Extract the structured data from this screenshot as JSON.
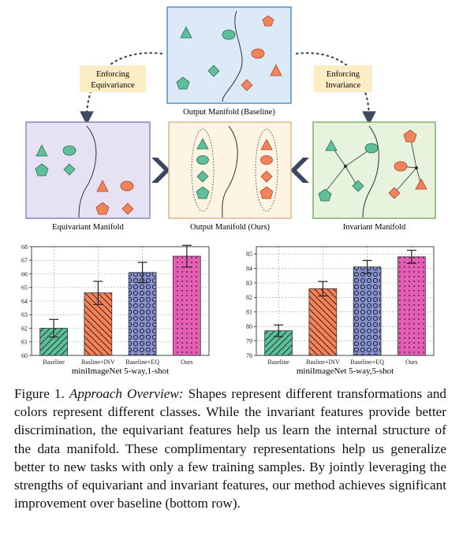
{
  "diagram": {
    "top_panel_label": "Output Manifold (Baseline)",
    "left_panel_label": "Equivariant Manifold",
    "middle_panel_label": "Output Manifold (Ours)",
    "right_panel_label": "Invariant Manifold",
    "left_tag": [
      "Enforcing",
      "Equivariance"
    ],
    "right_tag": [
      "Enforcing",
      "Invariance"
    ],
    "colors": {
      "teal": "#5fbf9a",
      "orange": "#f2835b",
      "panel_baseline": "#dbeaf6",
      "panel_equivariant": "#e6e2f4",
      "panel_ours": "#fdf4e4",
      "panel_invariant": "#e8f3de",
      "tag_bg": "#fcedc5",
      "border_baseline": "#5b8fbf",
      "border_equivariant": "#8a86b8",
      "border_ours": "#d9b98a",
      "border_invariant": "#7fae6b"
    }
  },
  "chart_data": [
    {
      "type": "bar",
      "xlabel": "miniImageNet 5-way,1-shot",
      "categories": [
        "Baseline",
        "Basline+INV",
        "Baseline+EQ",
        "Ours"
      ],
      "values": [
        62.0,
        64.6,
        66.1,
        67.3
      ],
      "errors": [
        0.65,
        0.85,
        0.75,
        0.8
      ],
      "ylim": [
        60,
        68
      ],
      "yticks": [
        60,
        61,
        62,
        63,
        64,
        65,
        66,
        67,
        68
      ],
      "grid": true,
      "colors": [
        "#5fbf9a",
        "#f2835b",
        "#8a93c9",
        "#e35fb3"
      ],
      "hatches": [
        "diagonal",
        "back-diagonal",
        "circles",
        "dots"
      ]
    },
    {
      "type": "bar",
      "xlabel": "miniImageNet 5-way,5-shot",
      "categories": [
        "Baseline",
        "Basline+INV",
        "Baseline+EQ",
        "Ours"
      ],
      "values": [
        79.7,
        82.6,
        84.1,
        84.8
      ],
      "errors": [
        0.4,
        0.5,
        0.45,
        0.45
      ],
      "ylim": [
        78,
        85.5
      ],
      "yticks": [
        78,
        79,
        80,
        81,
        82,
        83,
        84,
        85
      ],
      "grid": true,
      "colors": [
        "#5fbf9a",
        "#f2835b",
        "#8a93c9",
        "#e35fb3"
      ],
      "hatches": [
        "diagonal",
        "back-diagonal",
        "circles",
        "dots"
      ]
    }
  ],
  "caption": {
    "figure_label": "Figure 1.",
    "title": "Approach Overview:",
    "body": " Shapes represent different transformations and colors represent different classes. While the invariant features provide better discrimination, the equivariant features help us learn the internal structure of the data manifold. These complimentary representations help us generalize better to new tasks with only a few training samples. By jointly leveraging the strengths of equivariant and invariant features, our method achieves significant improvement over baseline (bottom row)."
  }
}
